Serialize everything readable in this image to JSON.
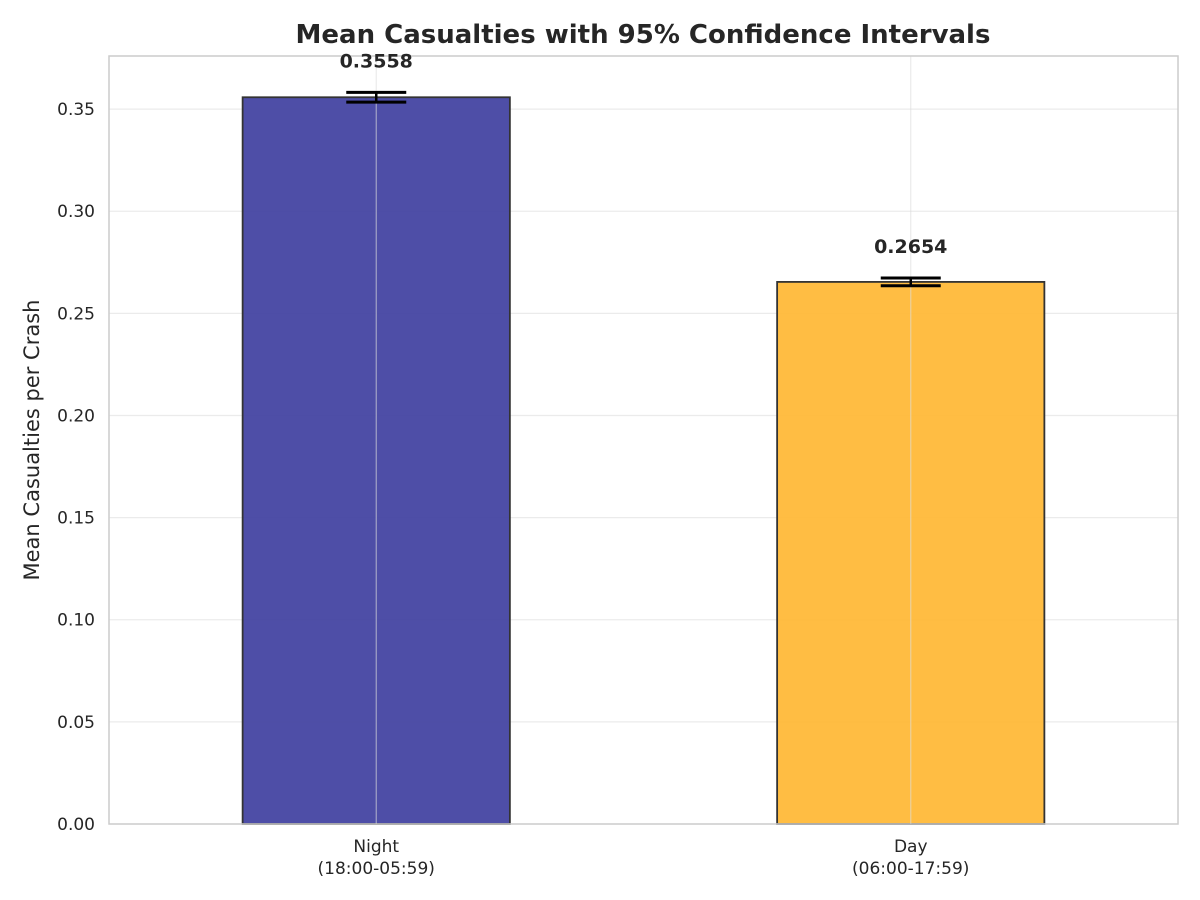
{
  "chart_data": {
    "type": "bar",
    "title": "Mean Casualties with 95% Confidence Intervals",
    "xlabel": "",
    "ylabel": "Mean Casualties per Crash",
    "ylim": [
      0,
      0.376
    ],
    "yticks": [
      "0.00",
      "0.05",
      "0.10",
      "0.15",
      "0.20",
      "0.25",
      "0.30",
      "0.35"
    ],
    "ytick_values": [
      0,
      0.05,
      0.1,
      0.15,
      0.2,
      0.25,
      0.3,
      0.35
    ],
    "categories": [
      [
        "Night",
        "(18:00-05:59)"
      ],
      [
        "Day",
        "(06:00-17:59)"
      ]
    ],
    "values": [
      0.3558,
      0.2654
    ],
    "value_labels": [
      "0.3558",
      "0.2654"
    ],
    "ci_lower": [
      0.3534,
      0.2635
    ],
    "ci_upper": [
      0.3582,
      0.2673
    ],
    "colors": [
      "#3f3f9f",
      "#ffb733"
    ],
    "grid": true,
    "legend": "none"
  }
}
